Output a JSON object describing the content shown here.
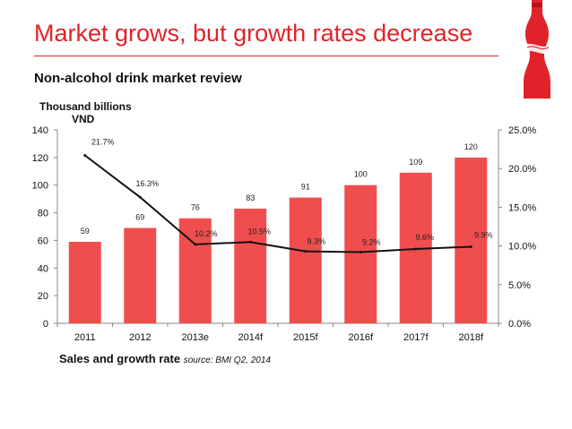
{
  "title": "Market grows, but growth rates decrease",
  "subtitle": "Non-alcohol drink market review",
  "caption": {
    "main": "Sales and growth rate",
    "source": "source: BMI Q2, 2014"
  },
  "colors": {
    "accent": "#e0232a",
    "bar": "#f04e4e",
    "line": "#111111"
  },
  "logo": {
    "icon": "coca-cola-bottle-icon"
  },
  "chart_data": {
    "type": "bar",
    "ylabel": [
      "Thousand billions",
      "VND"
    ],
    "categories": [
      "2011",
      "2012",
      "2013e",
      "2014f",
      "2015f",
      "2016f",
      "2017f",
      "2018f"
    ],
    "values": [
      59,
      69,
      76,
      83,
      91,
      100,
      109,
      120
    ],
    "value_labels": [
      "59",
      "69",
      "76",
      "83",
      "91",
      "100",
      "109",
      "120"
    ],
    "ylim": [
      0,
      140
    ],
    "yticks": [
      "0",
      "20",
      "40",
      "60",
      "80",
      "100",
      "120",
      "140"
    ],
    "ytick_values": [
      0,
      20,
      40,
      60,
      80,
      100,
      120,
      140
    ],
    "secondary": {
      "type": "line",
      "name": "Growth rate",
      "values": [
        21.7,
        16.3,
        10.2,
        10.5,
        9.3,
        9.2,
        9.6,
        9.9
      ],
      "labels": [
        "21.7%",
        "16.3%",
        "10.2%",
        "10.5%",
        "9.3%",
        "9.2%",
        "9.6%",
        "9.9%"
      ],
      "ylim": [
        0,
        25
      ],
      "yticks": [
        "0.0%",
        "5.0%",
        "10.0%",
        "15.0%",
        "20.0%",
        "25.0%"
      ],
      "ytick_values": [
        0,
        5,
        10,
        15,
        20,
        25
      ]
    }
  }
}
